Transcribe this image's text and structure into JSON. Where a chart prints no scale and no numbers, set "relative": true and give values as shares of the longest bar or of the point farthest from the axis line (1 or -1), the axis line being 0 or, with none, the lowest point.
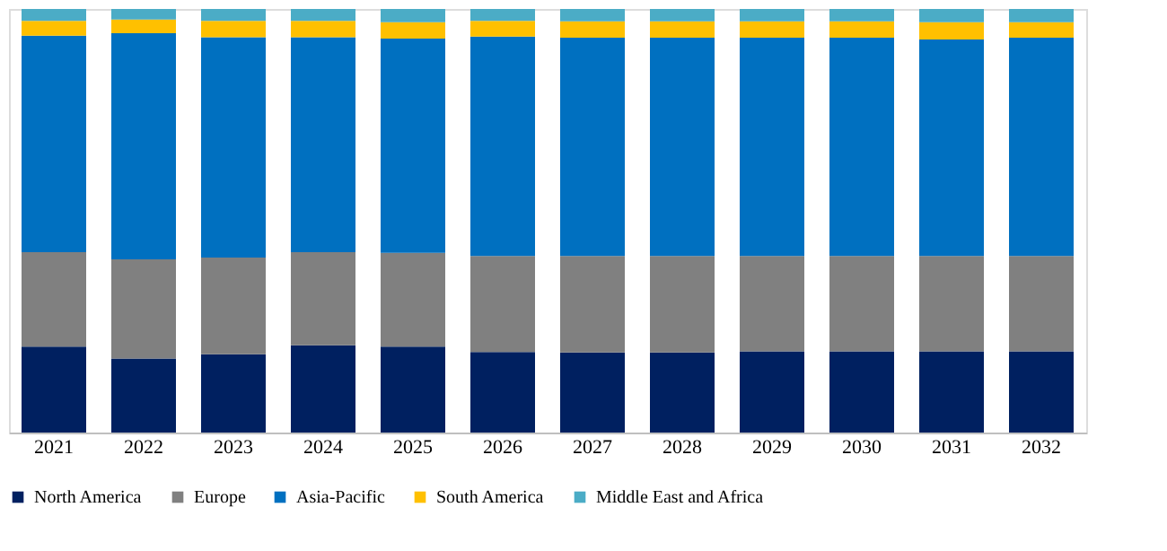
{
  "chart_data": {
    "type": "bar",
    "stacked": true,
    "relative": true,
    "legend": "bottom",
    "grid": false,
    "categories": [
      "2021",
      "2022",
      "2023",
      "2024",
      "2025",
      "2026",
      "2027",
      "2028",
      "2029",
      "2030",
      "2031",
      "2032"
    ],
    "series": [
      {
        "name": "North America",
        "color": "#002060",
        "values": [
          0.203,
          0.175,
          0.185,
          0.206,
          0.203,
          0.19,
          0.189,
          0.189,
          0.192,
          0.192,
          0.192,
          0.192
        ]
      },
      {
        "name": "Europe",
        "color": "#808080",
        "values": [
          0.223,
          0.234,
          0.228,
          0.22,
          0.221,
          0.227,
          0.228,
          0.228,
          0.225,
          0.225,
          0.225,
          0.225
        ]
      },
      {
        "name": "Asia-Pacific",
        "color": "#0070c0",
        "values": [
          0.511,
          0.534,
          0.52,
          0.507,
          0.506,
          0.518,
          0.515,
          0.515,
          0.515,
          0.515,
          0.511,
          0.515
        ]
      },
      {
        "name": "South America",
        "color": "#ffc000",
        "values": [
          0.035,
          0.032,
          0.039,
          0.039,
          0.039,
          0.037,
          0.039,
          0.039,
          0.039,
          0.039,
          0.041,
          0.037
        ]
      },
      {
        "name": "Middle East and Africa",
        "color": "#4bacc6",
        "values": [
          0.028,
          0.025,
          0.028,
          0.028,
          0.031,
          0.028,
          0.029,
          0.029,
          0.029,
          0.029,
          0.031,
          0.031
        ]
      }
    ]
  }
}
